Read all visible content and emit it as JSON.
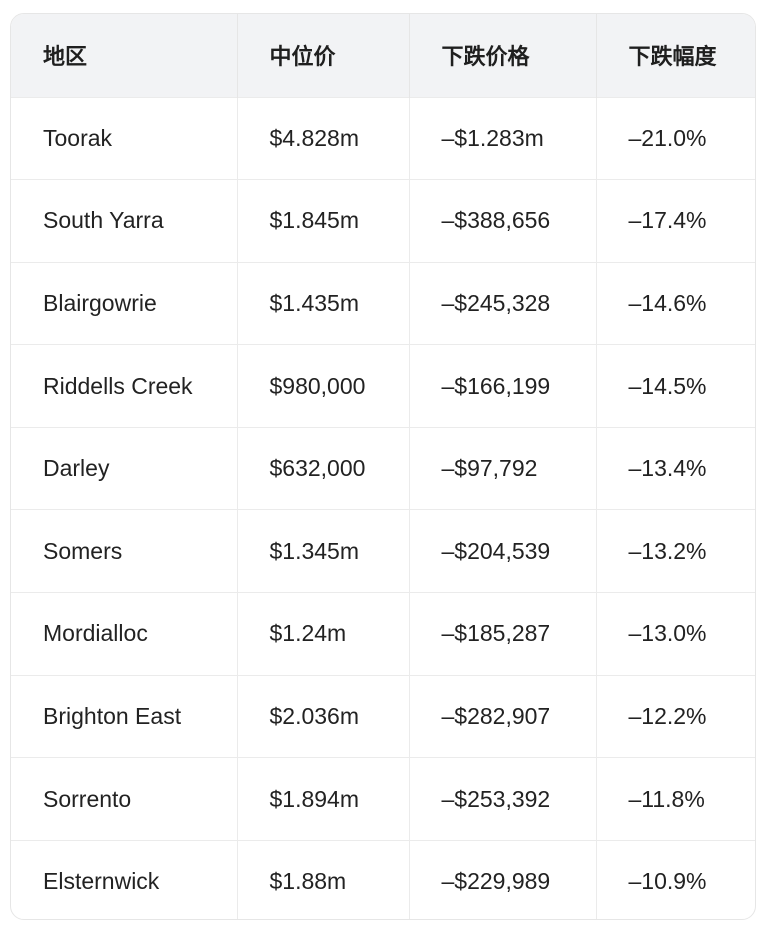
{
  "table": {
    "headers": [
      "地区",
      "中位价",
      "下跌价格",
      "下跌幅度"
    ],
    "rows": [
      [
        "Toorak",
        "$4.828m",
        "–$1.283m",
        "–21.0%"
      ],
      [
        "South Yarra",
        "$1.845m",
        "–$388,656",
        "–17.4%"
      ],
      [
        "Blairgowrie",
        "$1.435m",
        "–$245,328",
        "–14.6%"
      ],
      [
        "Riddells Creek",
        "$980,000",
        "–$166,199",
        "–14.5%"
      ],
      [
        "Darley",
        "$632,000",
        "–$97,792",
        "–13.4%"
      ],
      [
        "Somers",
        "$1.345m",
        "–$204,539",
        "–13.2%"
      ],
      [
        "Mordialloc",
        "$1.24m",
        "–$185,287",
        "–13.0%"
      ],
      [
        "Brighton East",
        "$2.036m",
        "–$282,907",
        "–12.2%"
      ],
      [
        "Sorrento",
        "$1.894m",
        "–$253,392",
        "–11.8%"
      ],
      [
        "Elsternwick",
        "$1.88m",
        "–$229,989",
        "–10.9%"
      ]
    ]
  }
}
